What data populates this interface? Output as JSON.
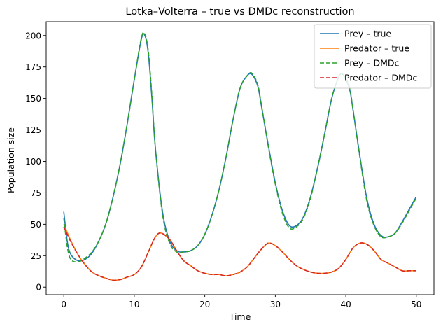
{
  "chart_data": {
    "type": "line",
    "title": "Lotka–Volterra – true vs DMDc reconstruction",
    "xlabel": "Time",
    "ylabel": "Population size",
    "xlim": [
      -2.5,
      52.5
    ],
    "ylim": [
      -6,
      211
    ],
    "xticks": [
      0,
      10,
      20,
      30,
      40,
      50
    ],
    "yticks": [
      0,
      25,
      50,
      75,
      100,
      125,
      150,
      175,
      200
    ],
    "grid": false,
    "legend_position": "top-right",
    "series": [
      {
        "name": "Prey – true",
        "color": "#1f77b4",
        "dash": "solid",
        "x": [
          0,
          0.5,
          1,
          2,
          3,
          4,
          5,
          6,
          7,
          8,
          9,
          10,
          11,
          11.5,
          12,
          12.5,
          13,
          14,
          15,
          16,
          17,
          18,
          19,
          20,
          21,
          22,
          23,
          24,
          25,
          26,
          26.7,
          27.5,
          28,
          29,
          30,
          31,
          32,
          33,
          34,
          35,
          36,
          37,
          38,
          39,
          39.6,
          40.5,
          41,
          42,
          43,
          44,
          45,
          46,
          47,
          48,
          49,
          50
        ],
        "y": [
          60,
          36,
          26,
          21,
          22,
          27,
          37,
          51,
          72,
          98,
          130,
          165,
          197,
          200,
          185,
          150,
          110,
          60,
          37,
          29,
          28,
          29,
          33,
          42,
          57,
          77,
          103,
          133,
          158,
          168,
          169,
          160,
          145,
          113,
          83,
          61,
          49,
          49,
          56,
          72,
          95,
          122,
          150,
          167,
          169,
          158,
          142,
          104,
          70,
          50,
          41,
          40,
          43,
          52,
          62,
          72
        ]
      },
      {
        "name": "Predator – true",
        "color": "#ff7f0e",
        "dash": "solid",
        "x": [
          0,
          1,
          2,
          3,
          4,
          5,
          6,
          7,
          8,
          9,
          10,
          11,
          12,
          13,
          13.8,
          15,
          16,
          17,
          18,
          19,
          20,
          21,
          22,
          23,
          24,
          25,
          26,
          27,
          28,
          29,
          30,
          31,
          32,
          33,
          34,
          35,
          36,
          37,
          38,
          39,
          40,
          41,
          42,
          43,
          44,
          45,
          46,
          47,
          48,
          49,
          50
        ],
        "y": [
          50,
          37,
          26,
          18,
          12,
          9,
          7,
          5.5,
          6,
          8,
          10,
          16,
          28,
          40,
          43,
          38,
          29,
          21,
          17,
          13,
          11,
          10,
          10,
          9,
          10,
          12,
          16,
          23,
          30,
          35,
          33,
          28,
          22,
          17,
          14,
          12,
          11,
          11,
          12,
          15,
          22,
          31,
          35,
          34,
          29,
          22,
          19,
          16,
          13,
          13,
          13
        ]
      },
      {
        "name": "Prey – DMDc",
        "color": "#2ca02c",
        "dash": "dashed",
        "x": [
          0,
          0.5,
          1,
          2,
          3,
          4,
          5,
          6,
          7,
          8,
          9,
          10,
          11,
          11.5,
          12,
          12.5,
          13,
          14,
          15,
          16,
          17,
          18,
          19,
          20,
          21,
          22,
          23,
          24,
          25,
          26,
          26.7,
          27.5,
          28,
          29,
          30,
          31,
          32,
          33,
          34,
          35,
          36,
          37,
          38,
          39,
          39.6,
          40.5,
          41,
          42,
          43,
          44,
          45,
          46,
          47,
          48,
          49,
          50
        ],
        "y": [
          55,
          32,
          22,
          20,
          23,
          28,
          37,
          51,
          72,
          98,
          130,
          165,
          198,
          201,
          187,
          152,
          110,
          58,
          35,
          28,
          28,
          29,
          33,
          42,
          57,
          77,
          103,
          133,
          158,
          168,
          170,
          161,
          146,
          112,
          82,
          59,
          47,
          48,
          55,
          71,
          95,
          122,
          150,
          167,
          169,
          159,
          142,
          103,
          68,
          49,
          40,
          40,
          43,
          51,
          61,
          71
        ]
      },
      {
        "name": "Predator – DMDc",
        "color": "#d62728",
        "dash": "dashed",
        "x": [
          0,
          1,
          2,
          3,
          4,
          5,
          6,
          7,
          8,
          9,
          10,
          11,
          12,
          13,
          13.8,
          15,
          16,
          17,
          18,
          19,
          20,
          21,
          22,
          23,
          24,
          25,
          26,
          27,
          28,
          29,
          30,
          31,
          32,
          33,
          34,
          35,
          36,
          37,
          38,
          39,
          40,
          41,
          42,
          43,
          44,
          45,
          46,
          47,
          48,
          49,
          50
        ],
        "y": [
          48,
          36,
          26,
          18,
          12,
          9,
          7,
          5.5,
          6,
          8,
          10,
          16,
          28,
          40,
          43,
          38,
          29,
          21,
          17,
          13,
          11,
          10,
          10,
          9,
          10,
          12,
          16,
          23,
          30,
          35,
          33,
          28,
          22,
          17,
          14,
          12,
          11,
          11,
          12,
          15,
          22,
          31,
          35,
          34,
          29,
          22,
          19,
          16,
          13,
          13,
          13
        ]
      }
    ]
  }
}
